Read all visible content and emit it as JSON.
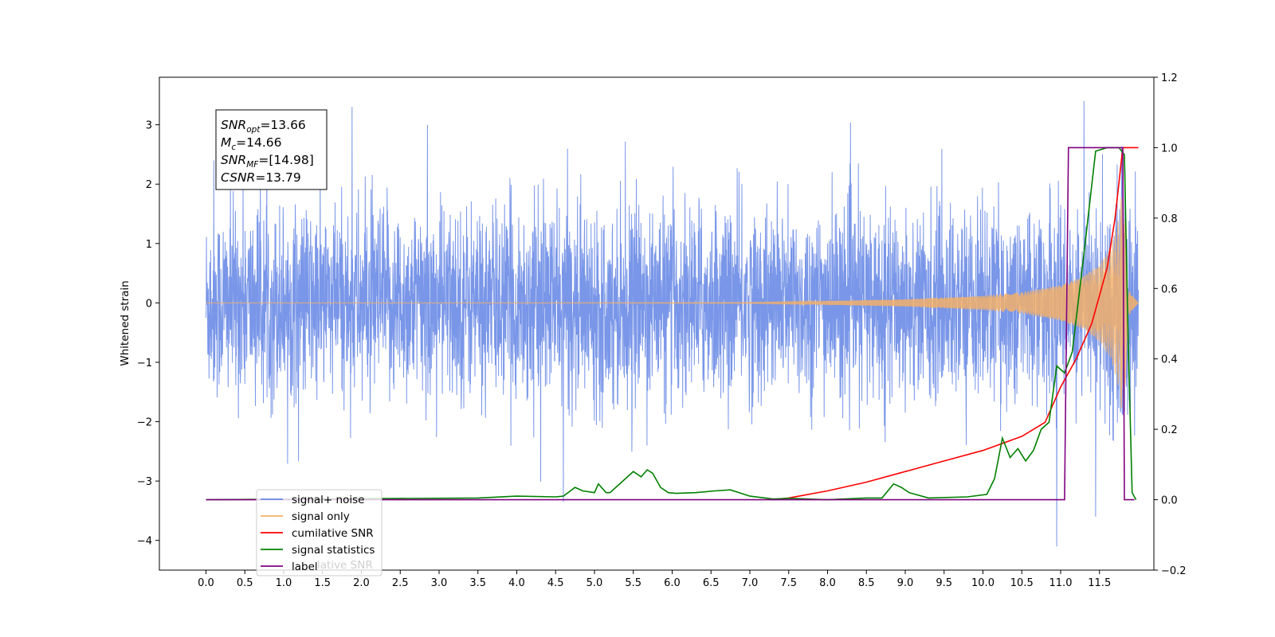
{
  "chart_data": {
    "type": "line",
    "ylabel": "Whitened strain",
    "xlim": [
      -0.6,
      12.2
    ],
    "ylim": [
      -4.5,
      3.8
    ],
    "ylim_right": [
      -0.2,
      1.2
    ],
    "x_ticks": [
      0.0,
      0.5,
      1.0,
      1.5,
      2.0,
      2.5,
      3.0,
      3.5,
      4.0,
      4.5,
      5.0,
      5.5,
      6.0,
      6.5,
      7.0,
      7.5,
      8.0,
      8.5,
      9.0,
      9.5,
      10.0,
      10.5,
      11.0,
      11.5
    ],
    "x_tick_labels": [
      "0.0",
      "0.5",
      "1.0",
      "1.5",
      "2.0",
      "2.5",
      "3.0",
      "3.5",
      "4.0",
      "4.5",
      "5.0",
      "5.5",
      "6.0",
      "6.5",
      "7.0",
      "7.5",
      "8.0",
      "8.5",
      "9.0",
      "9.5",
      "10.0",
      "10.5",
      "11.0",
      "11.5"
    ],
    "y_ticks_left": [
      -4,
      -3,
      -2,
      -1,
      0,
      1,
      2,
      3
    ],
    "y_tick_labels_left": [
      "−4",
      "−3",
      "−2",
      "−1",
      "0",
      "1",
      "2",
      "3"
    ],
    "y_ticks_right": [
      -0.2,
      0.0,
      0.2,
      0.4,
      0.6,
      0.8,
      1.0,
      1.2
    ],
    "y_tick_labels_right": [
      "−0.2",
      "0.0",
      "0.2",
      "0.4",
      "0.6",
      "0.8",
      "1.0",
      "1.2"
    ],
    "grid": false,
    "legend_position": "lower-left",
    "series": [
      {
        "name": "signal+ noise",
        "axis": "left",
        "color": "#6a8be6",
        "description_values": {
          "x_range": [
            0.0,
            12.0
          ],
          "typical_band": [
            -2.0,
            2.0
          ],
          "peaks": [
            [
              1.88,
              3.3
            ],
            [
              11.3,
              3.4
            ],
            [
              10.95,
              -4.1
            ],
            [
              11.45,
              -3.6
            ],
            [
              0.1,
              2.4
            ],
            [
              2.85,
              3.0
            ],
            [
              4.6,
              -3.35
            ]
          ]
        }
      },
      {
        "name": "signal only",
        "axis": "left",
        "color": "#f2b06a",
        "envelope": {
          "x": [
            0.0,
            7.0,
            8.0,
            9.0,
            10.0,
            10.5,
            11.0,
            11.3,
            11.5,
            11.65,
            11.75,
            11.8,
            11.85,
            11.9,
            12.0
          ],
          "amp": [
            0.005,
            0.01,
            0.03,
            0.06,
            0.12,
            0.18,
            0.3,
            0.45,
            0.65,
            0.95,
            1.45,
            2.0,
            1.0,
            0.15,
            0.0
          ]
        }
      },
      {
        "name": "cumilative SNR",
        "axis": "right",
        "color": "#ff0000",
        "x": [
          7.3,
          7.5,
          8.0,
          8.5,
          9.0,
          9.5,
          10.0,
          10.5,
          10.8,
          11.0,
          11.2,
          11.4,
          11.6,
          11.7,
          11.8,
          11.85,
          12.0
        ],
        "y": [
          0.0,
          0.005,
          0.025,
          0.05,
          0.08,
          0.11,
          0.14,
          0.18,
          0.22,
          0.32,
          0.4,
          0.5,
          0.66,
          0.8,
          1.0,
          1.0,
          1.0
        ]
      },
      {
        "name": "signal statistics",
        "axis": "right",
        "color": "#008000",
        "x": [
          0.0,
          3.5,
          4.0,
          4.5,
          4.6,
          4.75,
          4.85,
          5.0,
          5.05,
          5.15,
          5.2,
          5.35,
          5.5,
          5.6,
          5.68,
          5.75,
          5.85,
          5.95,
          6.05,
          6.3,
          6.55,
          6.75,
          7.0,
          7.3,
          7.5,
          8.0,
          8.5,
          8.7,
          8.85,
          8.95,
          9.05,
          9.3,
          9.8,
          10.05,
          10.15,
          10.25,
          10.35,
          10.45,
          10.55,
          10.65,
          10.75,
          10.85,
          10.95,
          11.05,
          11.15,
          11.3,
          11.45,
          11.6,
          11.75,
          11.82,
          11.87,
          11.92,
          11.97
        ],
        "y": [
          0.0,
          0.005,
          0.01,
          0.008,
          0.01,
          0.035,
          0.025,
          0.02,
          0.045,
          0.02,
          0.02,
          0.05,
          0.08,
          0.065,
          0.085,
          0.075,
          0.035,
          0.02,
          0.018,
          0.02,
          0.025,
          0.028,
          0.01,
          0.002,
          0.004,
          0.0,
          0.005,
          0.005,
          0.045,
          0.035,
          0.02,
          0.005,
          0.008,
          0.015,
          0.06,
          0.175,
          0.12,
          0.145,
          0.11,
          0.14,
          0.2,
          0.22,
          0.38,
          0.36,
          0.42,
          0.7,
          0.99,
          1.0,
          1.0,
          0.98,
          0.45,
          0.02,
          0.0
        ]
      },
      {
        "name": "label",
        "axis": "right",
        "color": "#800080",
        "x": [
          0.0,
          11.05,
          11.1,
          11.8,
          11.82,
          11.95
        ],
        "y": [
          0.0,
          0.0,
          1.0,
          1.0,
          0.0,
          0.0
        ]
      }
    ],
    "annotations": [
      {
        "main": "SNR",
        "sub": "opt",
        "rest": "=13.66"
      },
      {
        "main": "M",
        "sub": "c",
        "rest": "=14.66"
      },
      {
        "main": "SNR",
        "sub": "MF",
        "rest": "=[14.98]"
      },
      {
        "main": "CSNR",
        "sub": "",
        "rest": "=13.79"
      }
    ],
    "legend": [
      "signal+ noise",
      "signal only",
      "cumilative SNR",
      "signal statistics",
      "label"
    ],
    "legend_ghost_text": "lative SNR"
  }
}
